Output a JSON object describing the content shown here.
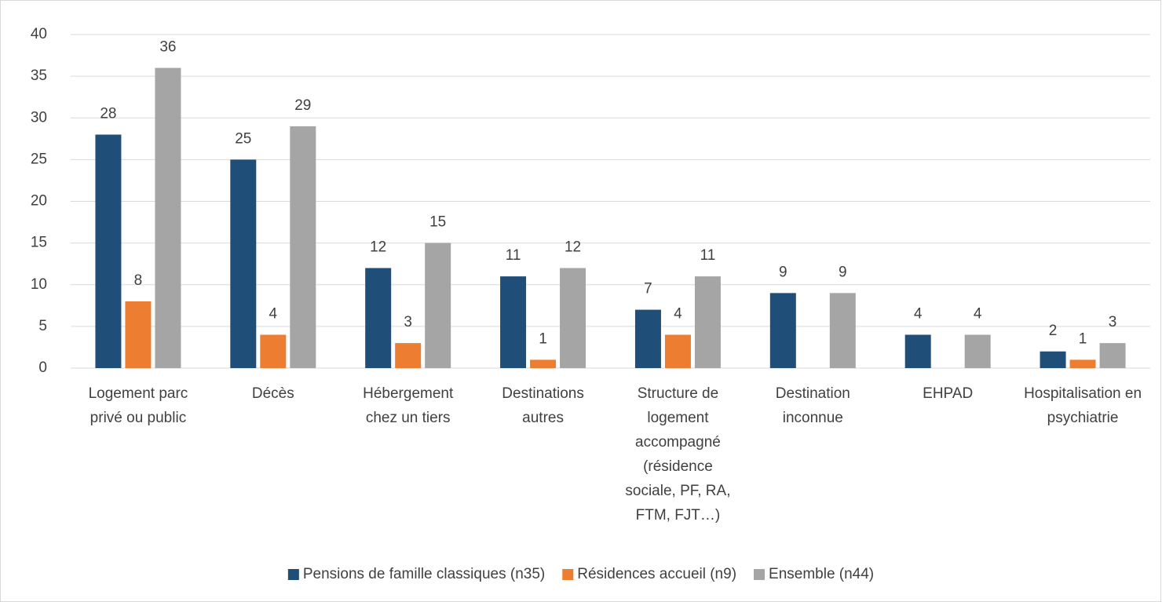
{
  "chart_data": {
    "type": "bar",
    "categories": [
      "Logement parc privé ou public",
      "Décès",
      "Hébergement chez un tiers",
      "Destinations autres",
      "Structure de logement accompagné (résidence sociale, PF, RA, FTM, FJT…)",
      "Destination inconnue",
      "EHPAD",
      "Hospitalisation en psychiatrie"
    ],
    "series": [
      {
        "name": "Pensions de famille classiques (n35)",
        "color": "#1f4e79",
        "values": [
          28,
          25,
          12,
          11,
          7,
          9,
          4,
          2
        ]
      },
      {
        "name": "Résidences accueil (n9)",
        "color": "#ed7d31",
        "values": [
          8,
          4,
          3,
          1,
          4,
          null,
          null,
          1
        ]
      },
      {
        "name": "Ensemble (n44)",
        "color": "#a5a5a5",
        "values": [
          36,
          29,
          15,
          12,
          11,
          9,
          4,
          3
        ]
      }
    ],
    "ylim": [
      0,
      40
    ],
    "yticks": [
      0,
      5,
      10,
      15,
      20,
      25,
      30,
      35,
      40
    ],
    "grid": true,
    "legend": "bottom"
  }
}
